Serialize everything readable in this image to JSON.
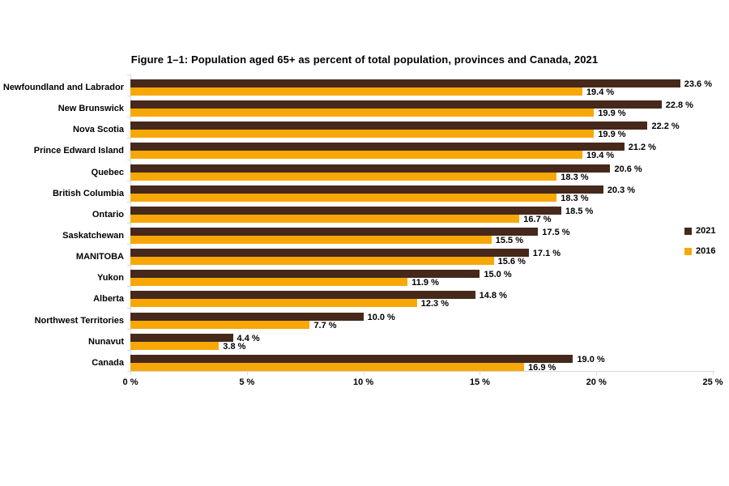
{
  "chart": {
    "title": "Figure 1–1: Population aged 65+ as percent of total population, provinces and Canada, 2021"
  },
  "chart_data": {
    "type": "bar",
    "orientation": "horizontal",
    "title": "Figure 1–1: Population aged 65+ as percent of total population, provinces and Canada, 2021",
    "categories": [
      "Newfoundland and Labrador",
      "New Brunswick",
      "Nova Scotia",
      "Prince Edward Island",
      "Quebec",
      "British Columbia",
      "Ontario",
      "Saskatchewan",
      "MANITOBA",
      "Yukon",
      "Alberta",
      "Northwest Territories",
      "Nunavut",
      "Canada"
    ],
    "series": [
      {
        "name": "2021",
        "color": "#46291B",
        "values": [
          23.6,
          22.8,
          22.2,
          21.2,
          20.6,
          20.3,
          18.5,
          17.5,
          17.1,
          15.0,
          14.8,
          10.0,
          4.4,
          19.0
        ]
      },
      {
        "name": "2016",
        "color": "#F7A707",
        "values": [
          19.4,
          19.9,
          19.9,
          19.4,
          18.3,
          18.3,
          16.7,
          15.5,
          15.6,
          11.9,
          12.3,
          7.7,
          3.8,
          16.9
        ]
      }
    ],
    "value_label_suffix": " %",
    "xlabel": "",
    "ylabel": "",
    "xlim": [
      0,
      25
    ],
    "x_tick_values": [
      0,
      5,
      10,
      15,
      20,
      25
    ],
    "x_tick_labels": [
      "0 %",
      "5 %",
      "10 %",
      "15 %",
      "20 %",
      "25 %"
    ],
    "grid": false,
    "legend_position": "right",
    "axis_color": "#D9D9D9",
    "text_color": "#000000"
  }
}
